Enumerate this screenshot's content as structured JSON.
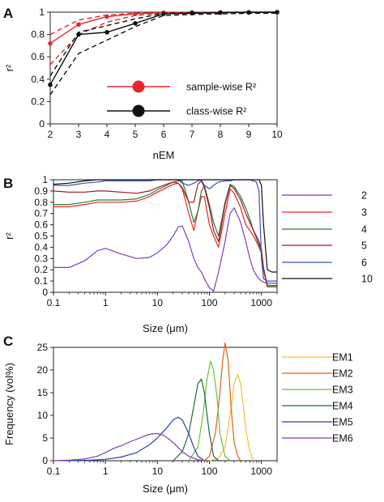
{
  "chart_data": [
    {
      "panel": "A",
      "type": "line",
      "xlabel": "nEM",
      "ylabel": "r²",
      "xlim": [
        2,
        10
      ],
      "ylim": [
        0,
        1
      ],
      "x_ticks": [
        "2",
        "3",
        "4",
        "5",
        "6",
        "7",
        "8",
        "9",
        "10"
      ],
      "y_ticks": [
        "0",
        "0.2",
        "0.4",
        "0.6",
        "0.8",
        "1"
      ],
      "x": [
        2,
        3,
        4,
        5,
        6,
        7,
        8,
        9,
        10
      ],
      "legend_position": "bottom-right",
      "legend": [
        {
          "label": "sample-wise R²",
          "color": "#e8262b"
        },
        {
          "label": "class-wise R²",
          "color": "#111111"
        }
      ],
      "series": [
        {
          "name": "sample-wise R²",
          "color": "#e8262b",
          "style": "solid",
          "markers": true,
          "values": [
            0.72,
            0.89,
            0.96,
            0.985,
            0.995,
            0.998,
            0.999,
            0.999,
            1.0
          ]
        },
        {
          "color": "#e8262b",
          "style": "dashed",
          "values": [
            0.8,
            0.93,
            0.975,
            0.99,
            0.997,
            0.999,
            1.0,
            1.0,
            1.0
          ]
        },
        {
          "color": "#e8262b",
          "style": "dashed",
          "values": [
            0.53,
            0.8,
            0.91,
            0.97,
            0.99,
            0.995,
            0.998,
            0.999,
            1.0
          ]
        },
        {
          "name": "class-wise R²",
          "color": "#111111",
          "style": "solid",
          "markers": true,
          "values": [
            0.35,
            0.8,
            0.82,
            0.9,
            0.985,
            0.99,
            0.995,
            0.997,
            1.0
          ]
        },
        {
          "color": "#111111",
          "style": "dashed",
          "values": [
            0.43,
            0.82,
            0.88,
            0.94,
            0.99,
            0.995,
            0.998,
            0.999,
            1.0
          ]
        },
        {
          "color": "#111111",
          "style": "dashed",
          "values": [
            0.26,
            0.63,
            0.75,
            0.87,
            0.97,
            0.98,
            0.985,
            0.99,
            0.99
          ]
        }
      ]
    },
    {
      "panel": "B",
      "type": "line",
      "xscale": "log",
      "xlabel": "Size (μm)",
      "ylabel": "r²",
      "xlim": [
        0.1,
        2000
      ],
      "ylim": [
        0,
        1
      ],
      "x_ticks": [
        "0.1",
        "1",
        "10",
        "100",
        "1000"
      ],
      "y_ticks": [
        "0",
        "0.1",
        "0.2",
        "0.3",
        "0.4",
        "0.5",
        "0.6",
        "0.7",
        "0.8",
        "0.9",
        "1"
      ],
      "legend_position": "right",
      "x": [
        0.1,
        0.2,
        0.4,
        0.7,
        1,
        2,
        4,
        7,
        10,
        15,
        20,
        25,
        30,
        40,
        50,
        60,
        70,
        80,
        100,
        120,
        150,
        200,
        250,
        300,
        400,
        500,
        600,
        700,
        800,
        900,
        1000,
        1100,
        1300,
        1600,
        2000
      ],
      "series": [
        {
          "name": "2",
          "color": "#7e3fb8",
          "values": [
            0.22,
            0.22,
            0.28,
            0.37,
            0.39,
            0.34,
            0.3,
            0.31,
            0.35,
            0.42,
            0.5,
            0.58,
            0.59,
            0.45,
            0.3,
            0.22,
            0.18,
            0.12,
            0.04,
            0.01,
            0.18,
            0.45,
            0.7,
            0.75,
            0.62,
            0.45,
            0.3,
            0.2,
            0.15,
            0.12,
            0.1,
            0.09,
            0.08,
            0.08,
            0.08
          ]
        },
        {
          "name": "3",
          "color": "#e8262b",
          "values": [
            0.76,
            0.76,
            0.78,
            0.8,
            0.8,
            0.8,
            0.81,
            0.85,
            0.89,
            0.93,
            0.96,
            0.97,
            0.92,
            0.7,
            0.55,
            0.72,
            0.85,
            0.85,
            0.6,
            0.5,
            0.4,
            0.7,
            0.92,
            0.88,
            0.75,
            0.6,
            0.55,
            0.5,
            0.45,
            0.4,
            0.35,
            0.2,
            0.05,
            0.05,
            0.05
          ]
        },
        {
          "name": "4",
          "color": "#2e7d32",
          "values": [
            0.78,
            0.78,
            0.8,
            0.82,
            0.82,
            0.82,
            0.83,
            0.87,
            0.91,
            0.95,
            0.98,
            0.99,
            0.99,
            0.8,
            0.62,
            0.72,
            0.9,
            0.95,
            0.78,
            0.62,
            0.5,
            0.8,
            0.96,
            0.94,
            0.85,
            0.75,
            0.65,
            0.55,
            0.48,
            0.42,
            0.35,
            0.2,
            0.05,
            0.05,
            0.05
          ]
        },
        {
          "name": "5",
          "color": "#a0182b",
          "values": [
            0.9,
            0.89,
            0.89,
            0.9,
            0.9,
            0.89,
            0.88,
            0.9,
            0.93,
            0.96,
            0.98,
            0.97,
            0.93,
            0.8,
            0.8,
            0.96,
            0.99,
            0.93,
            0.75,
            0.55,
            0.45,
            0.78,
            0.95,
            0.92,
            0.82,
            0.7,
            0.62,
            0.55,
            0.5,
            0.45,
            0.38,
            0.22,
            0.06,
            0.06,
            0.06
          ]
        },
        {
          "name": "6",
          "color": "#3a50b8",
          "values": [
            0.95,
            0.95,
            0.97,
            0.98,
            0.99,
            0.99,
            0.99,
            0.99,
            1.0,
            1.0,
            1.0,
            1.0,
            0.97,
            0.95,
            0.97,
            0.99,
            1.0,
            0.95,
            0.92,
            0.95,
            0.98,
            0.99,
            0.99,
            1.0,
            1.0,
            1.0,
            1.0,
            0.99,
            0.98,
            0.9,
            0.3,
            0.12,
            0.1,
            0.1,
            0.1
          ]
        },
        {
          "name": "10",
          "color": "#111111",
          "values": [
            0.96,
            0.97,
            0.99,
            1.0,
            1.0,
            1.0,
            1.0,
            1.0,
            1.0,
            1.0,
            1.0,
            1.0,
            1.0,
            1.0,
            1.0,
            1.0,
            1.0,
            1.0,
            1.0,
            1.0,
            1.0,
            1.0,
            1.0,
            1.0,
            1.0,
            1.0,
            1.0,
            1.0,
            1.0,
            1.0,
            0.95,
            0.6,
            0.2,
            0.18,
            0.18
          ]
        }
      ]
    },
    {
      "panel": "C",
      "type": "line",
      "xscale": "log",
      "xlabel": "Size (μm)",
      "ylabel": "Frequency (vol%)",
      "xlim": [
        0.1,
        2000
      ],
      "ylim": [
        0,
        25
      ],
      "x_ticks": [
        "0.1",
        "1",
        "10",
        "100",
        "1000"
      ],
      "y_ticks": [
        "0",
        "5",
        "10",
        "15",
        "20",
        "25"
      ],
      "legend_position": "right",
      "series": [
        {
          "name": "EM1",
          "color": "#f2c12e",
          "x": [
            100,
            150,
            200,
            250,
            300,
            350,
            400,
            450,
            500,
            600,
            700
          ],
          "values": [
            0,
            0.5,
            3,
            10,
            17,
            19,
            17,
            12,
            7,
            2,
            0
          ]
        },
        {
          "name": "EM2",
          "color": "#e8601c",
          "x": [
            80,
            100,
            130,
            150,
            180,
            200,
            230,
            260,
            300,
            350,
            400
          ],
          "values": [
            0,
            1,
            6,
            12,
            22,
            26,
            22,
            12,
            4,
            1,
            0
          ]
        },
        {
          "name": "EM3",
          "color": "#6cbf3f",
          "x": [
            40,
            60,
            75,
            90,
            105,
            120,
            140,
            160,
            200,
            250
          ],
          "values": [
            0,
            3,
            10,
            18,
            22,
            20,
            14,
            6,
            1,
            0
          ]
        },
        {
          "name": "EM4",
          "color": "#1e6b3a",
          "x": [
            20,
            30,
            40,
            50,
            60,
            70,
            80,
            90,
            100,
            120,
            150
          ],
          "values": [
            0,
            2,
            6,
            12,
            17,
            18,
            15,
            10,
            6,
            1,
            0
          ]
        },
        {
          "name": "EM5",
          "color": "#2f3fa8",
          "x": [
            0.2,
            0.5,
            1,
            2,
            4,
            7,
            10,
            15,
            20,
            25,
            30,
            40,
            50,
            60,
            80
          ],
          "values": [
            0,
            0.1,
            0.3,
            0.8,
            1.8,
            3.5,
            5,
            7.2,
            9,
            9.6,
            9,
            6,
            3,
            1,
            0
          ]
        },
        {
          "name": "EM6",
          "color": "#7a3fb0",
          "x": [
            0.1,
            0.2,
            0.4,
            0.7,
            1,
            1.5,
            2,
            3,
            5,
            7,
            9,
            12,
            15,
            20,
            30,
            40,
            60,
            80
          ],
          "values": [
            0,
            0.1,
            0.4,
            1,
            1.8,
            2.8,
            3.3,
            4.2,
            5.2,
            5.8,
            6,
            5.8,
            5.2,
            4,
            2,
            1,
            0.2,
            0
          ]
        }
      ]
    }
  ]
}
